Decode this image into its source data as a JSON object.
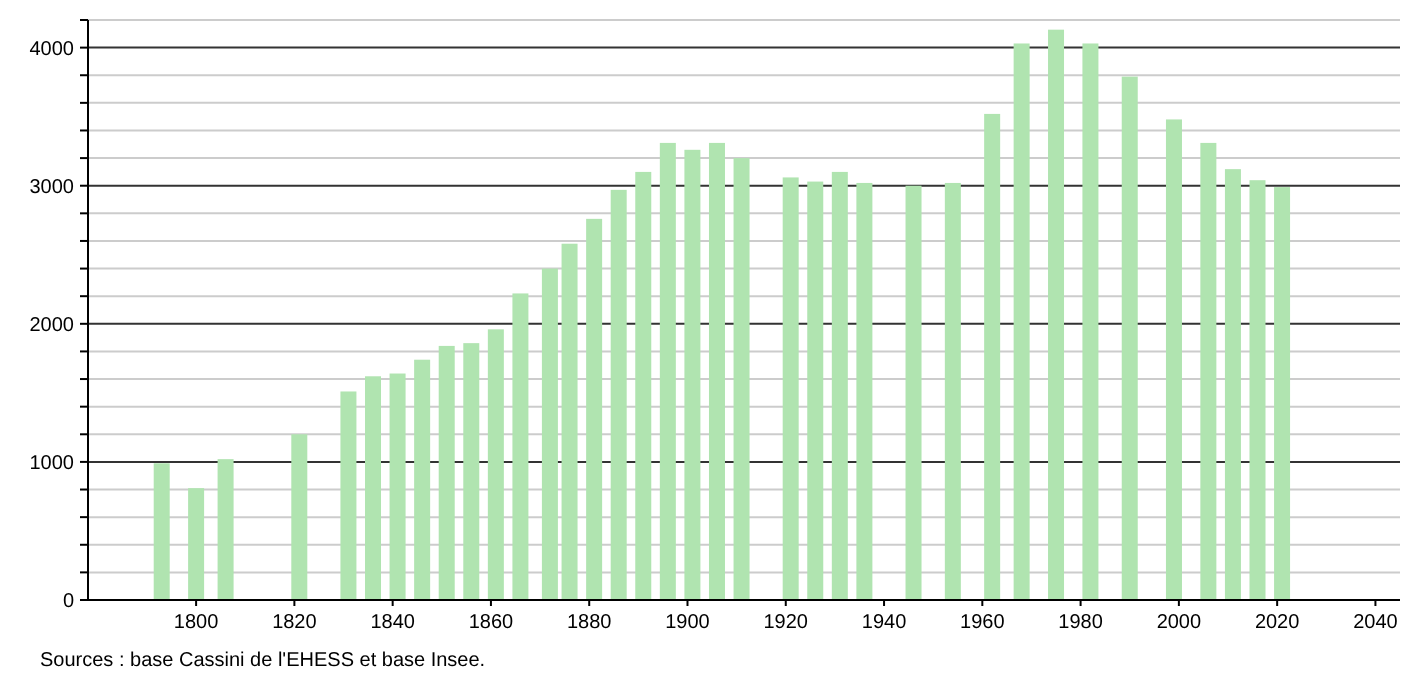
{
  "chart_data": {
    "type": "bar",
    "x": [
      1793,
      1800,
      1806,
      1821,
      1831,
      1836,
      1841,
      1846,
      1851,
      1856,
      1861,
      1866,
      1872,
      1876,
      1881,
      1886,
      1891,
      1896,
      1901,
      1906,
      1911,
      1921,
      1926,
      1931,
      1936,
      1946,
      1954,
      1962,
      1968,
      1975,
      1982,
      1990,
      1999,
      2006,
      2011,
      2016,
      2021
    ],
    "values": [
      990,
      810,
      1020,
      1200,
      1510,
      1620,
      1640,
      1740,
      1840,
      1860,
      1960,
      2220,
      2400,
      2580,
      2760,
      2970,
      3100,
      3310,
      3260,
      3310,
      3200,
      3060,
      3030,
      3100,
      3020,
      3000,
      3020,
      3520,
      4030,
      4130,
      4030,
      3790,
      3480,
      3310,
      3120,
      3040,
      2990
    ],
    "color": "#b0e4b0",
    "xlim": [
      1778,
      2045
    ],
    "xticks": [
      1800,
      1820,
      1840,
      1860,
      1880,
      1900,
      1920,
      1940,
      1960,
      1980,
      2000,
      2020,
      2040
    ],
    "ylim": [
      0,
      4200
    ],
    "yticks": [
      0,
      {
        "value": 200,
        "label": null
      },
      {
        "value": 400,
        "label": null
      },
      {
        "value": 600,
        "label": null
      },
      {
        "value": 800,
        "label": null
      },
      1000,
      {
        "value": 1200,
        "label": null
      },
      {
        "value": 1400,
        "label": null
      },
      {
        "value": 1600,
        "label": null
      },
      {
        "value": 1800,
        "label": null
      },
      2000,
      {
        "value": 2200,
        "label": null
      },
      {
        "value": 2400,
        "label": null
      },
      {
        "value": 2600,
        "label": null
      },
      {
        "value": 2800,
        "label": null
      },
      3000,
      {
        "value": 3200,
        "label": null
      },
      {
        "value": 3400,
        "label": null
      },
      {
        "value": 3600,
        "label": null
      },
      {
        "value": 3800,
        "label": null
      },
      4000,
      {
        "value": 4200,
        "label": null
      }
    ],
    "grid": "y",
    "annotations": [
      "Sources : base Cassini de l'EHESS et base Insee."
    ]
  }
}
